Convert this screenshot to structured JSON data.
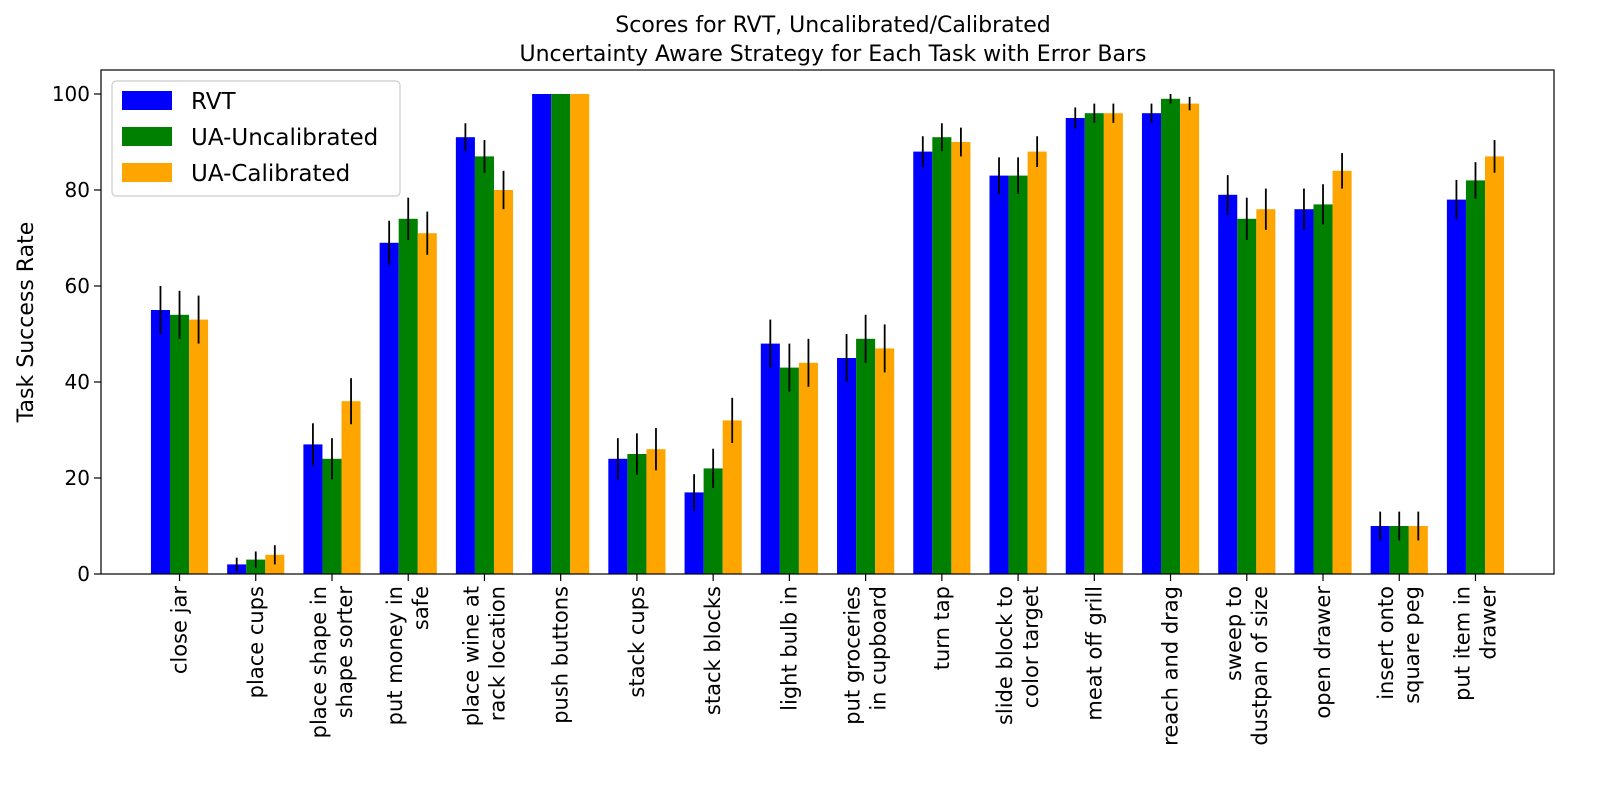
{
  "chart_data": {
    "type": "bar",
    "title_lines": [
      "Scores for RVT, Uncalibrated/Calibrated",
      "Uncertainty Aware Strategy for Each Task with Error Bars"
    ],
    "xlabel": "",
    "ylabel": "Task Success Rate",
    "ylim": [
      0,
      105
    ],
    "yticks": [
      0,
      20,
      40,
      60,
      80,
      100
    ],
    "grid": false,
    "legend_position": "top-left",
    "categories": [
      [
        "close jar"
      ],
      [
        "place cups"
      ],
      [
        "place shape in",
        "shape sorter"
      ],
      [
        "put money in",
        "safe"
      ],
      [
        "place wine at",
        "rack location"
      ],
      [
        "push buttons"
      ],
      [
        "stack cups"
      ],
      [
        "stack blocks"
      ],
      [
        "light bulb in"
      ],
      [
        "put groceries",
        "in cupboard"
      ],
      [
        "turn tap"
      ],
      [
        "slide block to",
        "color target"
      ],
      [
        "meat off grill"
      ],
      [
        "reach and drag"
      ],
      [
        "sweep to",
        "dustpan of size"
      ],
      [
        "open drawer"
      ],
      [
        "insert onto",
        "square peg"
      ],
      [
        "put item in",
        "drawer"
      ]
    ],
    "series": [
      {
        "name": "RVT",
        "color": "#0000ff",
        "values": [
          55,
          2,
          27,
          69,
          91,
          100,
          24,
          17,
          48,
          45,
          88,
          83,
          95,
          96,
          79,
          76,
          10,
          78
        ],
        "errors": [
          5,
          1.4,
          4.4,
          4.6,
          2.9,
          0,
          4.3,
          3.8,
          5,
          5,
          3.2,
          3.8,
          2.2,
          2,
          4.1,
          4.3,
          3,
          4.1
        ]
      },
      {
        "name": "UA-Uncalibrated",
        "color": "#008000",
        "values": [
          54,
          3,
          24,
          74,
          87,
          100,
          25,
          22,
          43,
          49,
          91,
          83,
          96,
          99,
          74,
          77,
          10,
          82
        ],
        "errors": [
          5,
          1.7,
          4.3,
          4.4,
          3.4,
          0,
          4.3,
          4.1,
          5,
          5,
          2.9,
          3.8,
          2,
          1,
          4.4,
          4.2,
          3,
          3.8
        ]
      },
      {
        "name": "UA-Calibrated",
        "color": "#ffa500",
        "values": [
          53,
          4,
          36,
          71,
          80,
          100,
          26,
          32,
          44,
          47,
          90,
          88,
          96,
          98,
          76,
          84,
          10,
          87
        ],
        "errors": [
          5,
          2,
          4.8,
          4.5,
          4,
          0,
          4.4,
          4.7,
          5,
          5,
          3,
          3.2,
          2,
          1.4,
          4.3,
          3.7,
          3,
          3.4
        ]
      }
    ]
  }
}
